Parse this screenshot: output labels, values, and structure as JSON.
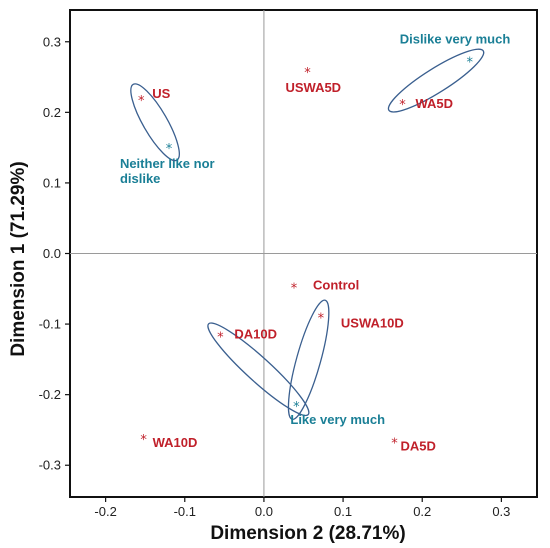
{
  "chart_data": {
    "type": "scatter",
    "xlabel": "Dimension 2 (28.71%)",
    "ylabel": "Dimension 1 (71.29%)",
    "xlim": [
      -0.245,
      0.345
    ],
    "ylim": [
      -0.345,
      0.345
    ],
    "x_ticks": [
      -0.2,
      -0.1,
      0.0,
      0.1,
      0.2,
      0.3
    ],
    "x_tick_labels": [
      "-0.2",
      "-0.1",
      "0.0",
      "0.1",
      "0.2",
      "0.3"
    ],
    "y_ticks": [
      0.3,
      0.2,
      0.1,
      0.0,
      -0.1,
      -0.2,
      -0.3
    ],
    "y_tick_labels": [
      "0.3",
      "0.2",
      "0.1",
      "0.0",
      "-0.1",
      "-0.2",
      "-0.3"
    ],
    "grid": false,
    "reference_lines": [
      0,
      0
    ],
    "colors": {
      "samples": "#c0202a",
      "hedonic": "#1a7f96",
      "ellipse": "#3a5f8f"
    },
    "samples": [
      {
        "label": "US",
        "x": -0.155,
        "y": 0.22
      },
      {
        "label": "USWA5D",
        "x": 0.055,
        "y": 0.26
      },
      {
        "label": "WA5D",
        "x": 0.175,
        "y": 0.215
      },
      {
        "label": "Control",
        "x": 0.038,
        "y": -0.045
      },
      {
        "label": "USWA10D",
        "x": 0.072,
        "y": -0.088
      },
      {
        "label": "DA10D",
        "x": -0.055,
        "y": -0.115
      },
      {
        "label": "WA10D",
        "x": -0.152,
        "y": -0.26
      },
      {
        "label": "DA5D",
        "x": 0.165,
        "y": -0.265
      }
    ],
    "hedonic": [
      {
        "label": "Dislike very much",
        "x": 0.26,
        "y": 0.275
      },
      {
        "label": "Neither like nor dislike",
        "lines": [
          "Neither like nor",
          "dislike"
        ],
        "x": -0.12,
        "y": 0.152
      },
      {
        "label": "Like very much",
        "x": 0.041,
        "y": -0.213
      }
    ],
    "ellipses": [
      {
        "from": "US",
        "to": "Neither like nor dislike"
      },
      {
        "from": "WA5D",
        "to": "Dislike very much"
      },
      {
        "from": "DA10D",
        "to": "Like very much"
      },
      {
        "from": "USWA10D",
        "to": "Like very much"
      }
    ]
  }
}
